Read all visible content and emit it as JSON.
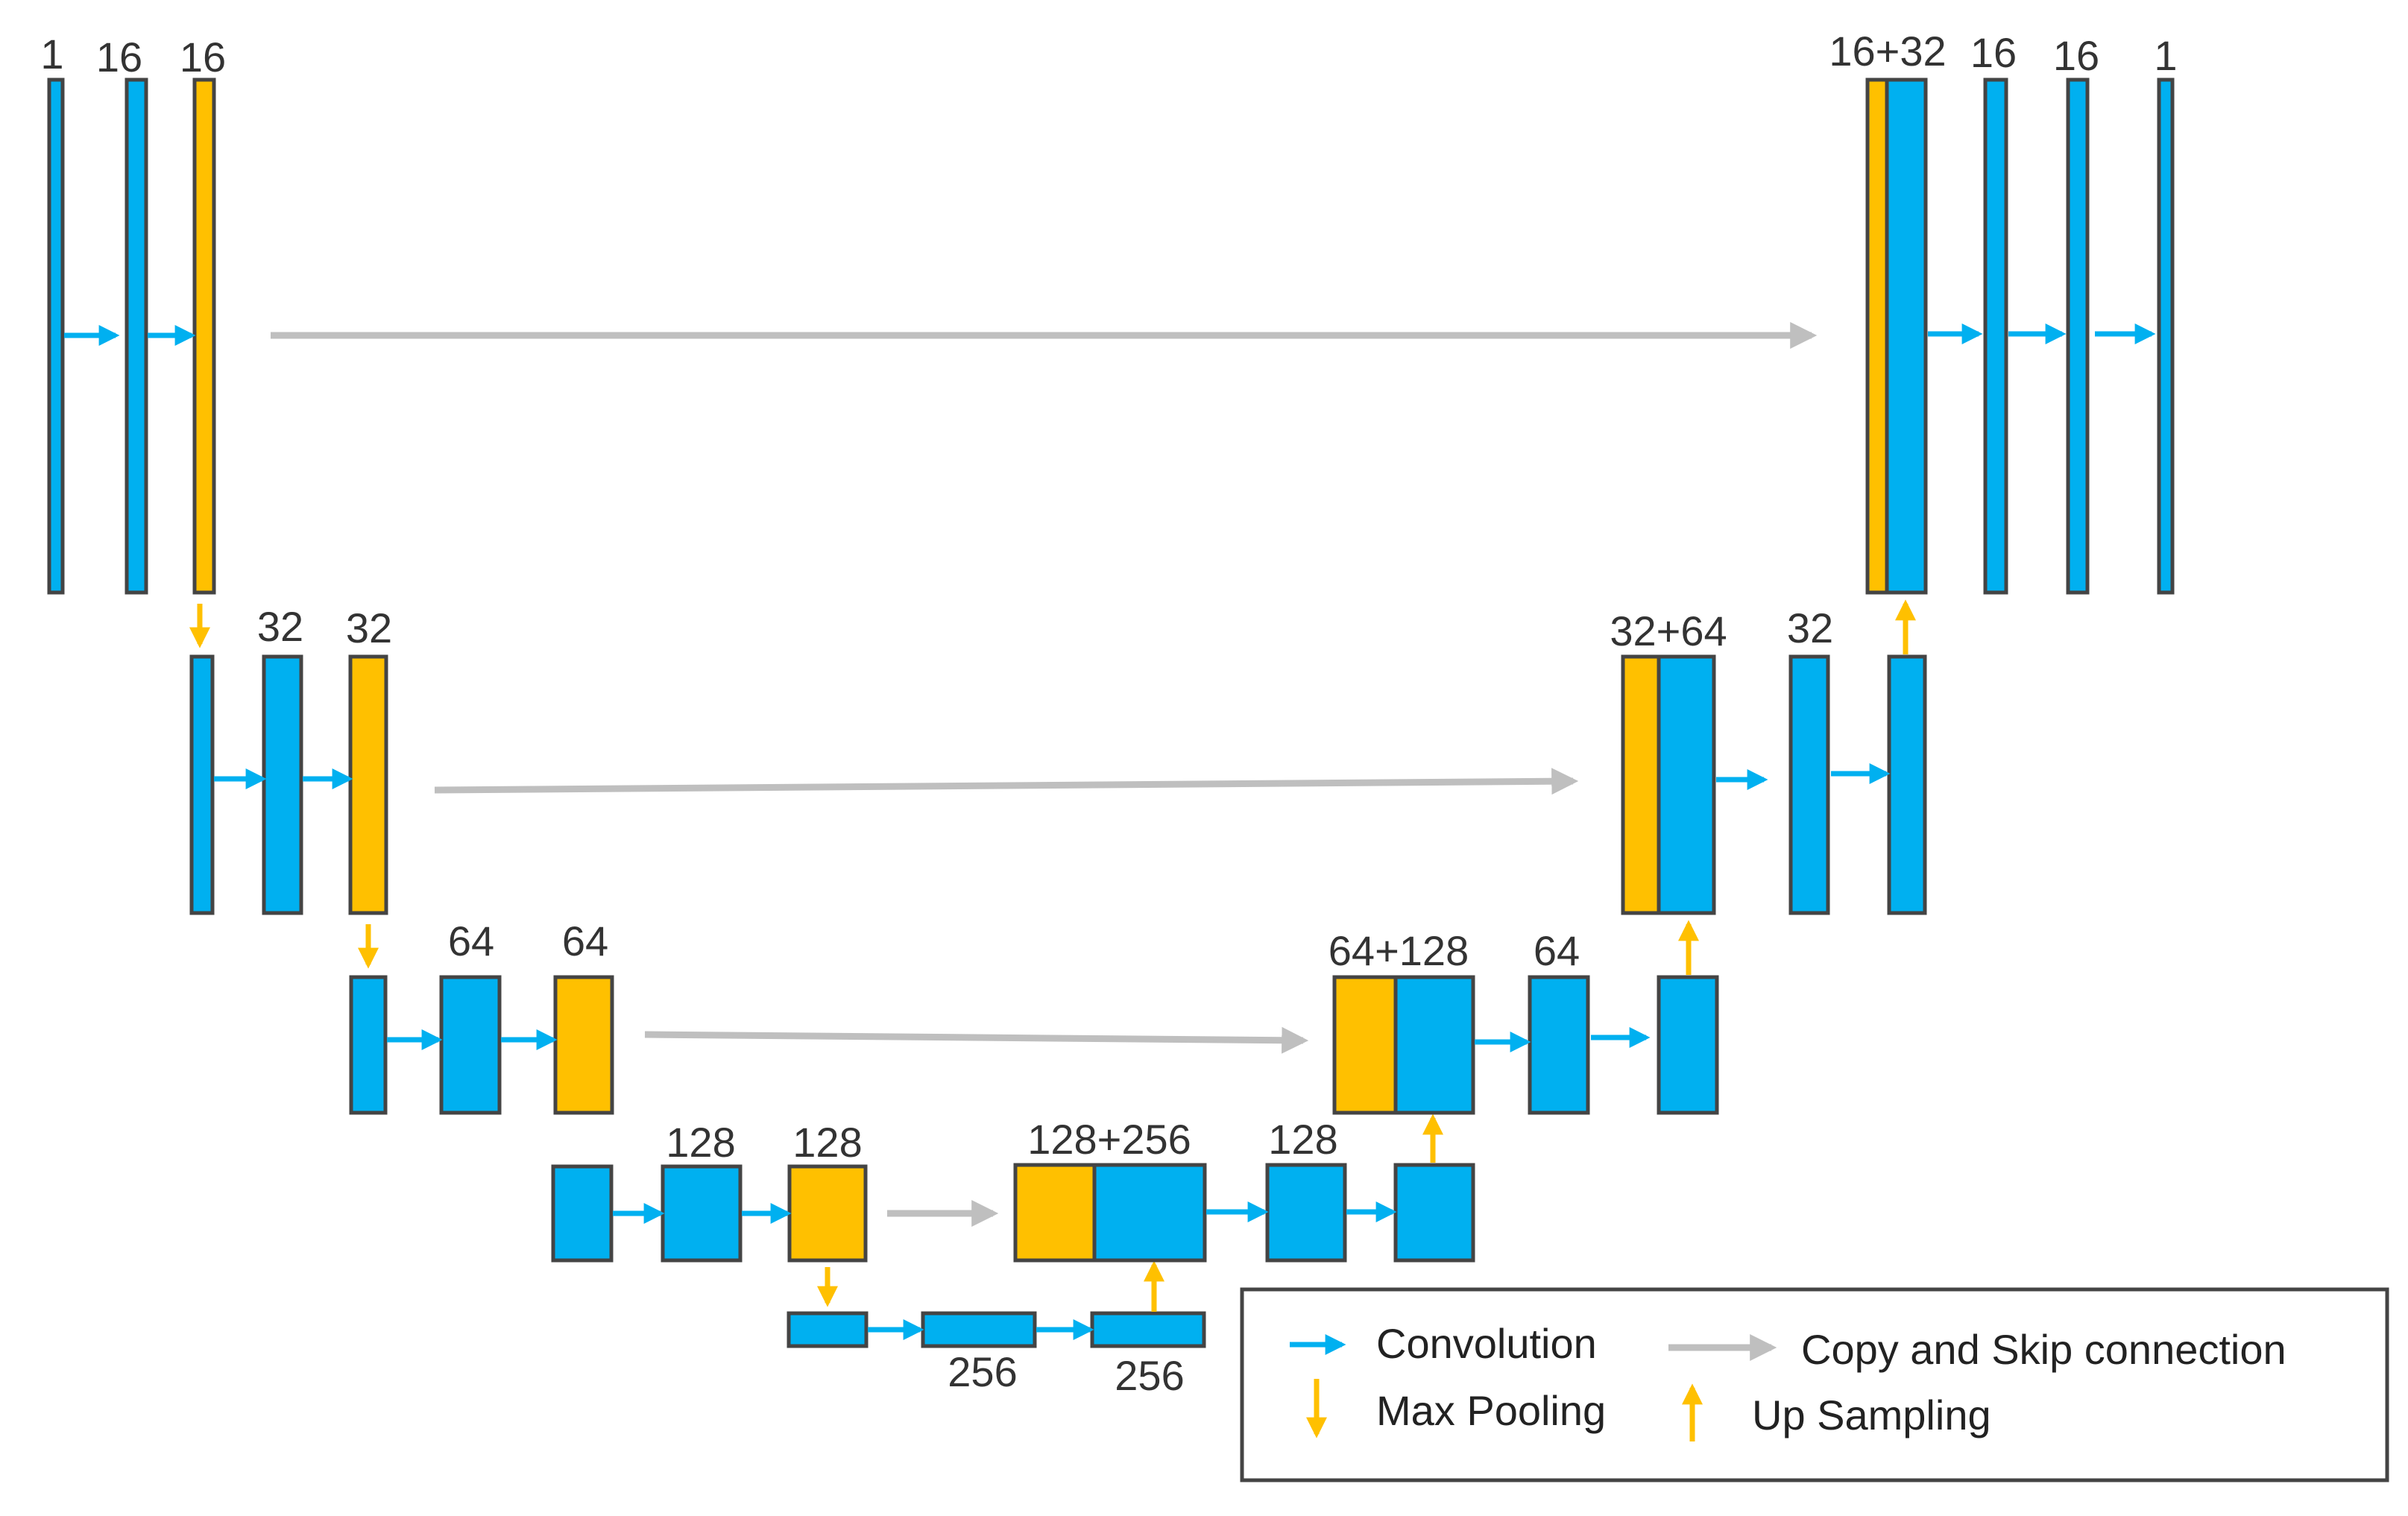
{
  "colors": {
    "conv_block": "#00B0F0",
    "pool_block": "#FFC000",
    "conv_arrow": "#00B0F0",
    "pool_arrow": "#FFC000",
    "skip_arrow": "#BFBFBF",
    "outline": "#444444"
  },
  "labels": {
    "l1_in": "1",
    "l1_c1": "16",
    "l1_c2": "16",
    "l1_cat": "16+32",
    "l1_d1": "16",
    "l1_d2": "16",
    "l1_out": "1",
    "l2_c1": "32",
    "l2_c2": "32",
    "l2_cat": "32+64",
    "l2_d1": "32",
    "l3_c1": "64",
    "l3_c2": "64",
    "l3_cat": "64+128",
    "l3_d1": "64",
    "l4_c1": "128",
    "l4_c2": "128",
    "l4_cat": "128+256",
    "l4_d1": "128",
    "l5_c1": "256",
    "l5_c2": "256"
  },
  "legend": {
    "convolution": "Convolution",
    "skip": "Copy and Skip connection",
    "pooling": "Max Pooling",
    "upsampling": "Up Sampling"
  },
  "icons": [
    "conv-arrow-icon",
    "skip-arrow-icon",
    "pool-arrow-icon",
    "upsample-arrow-icon"
  ]
}
